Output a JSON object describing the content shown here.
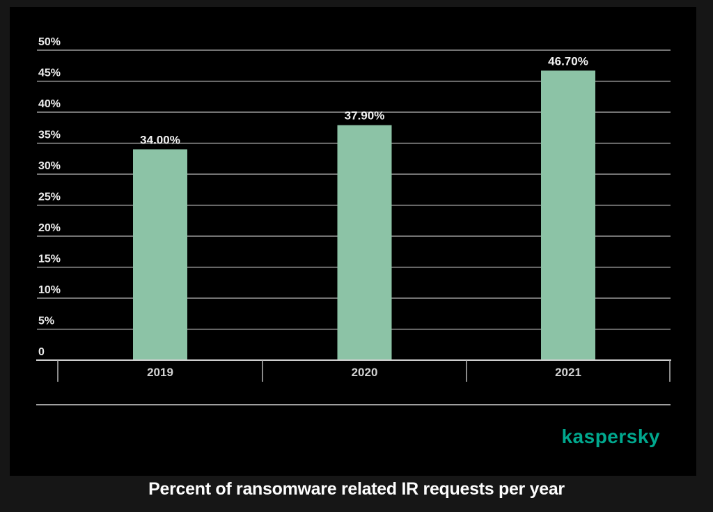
{
  "page": {
    "background_color": "#161616",
    "panel_color": "#000000"
  },
  "branding": {
    "logo_text": "kaspersky",
    "logo_color": "#00a88e"
  },
  "caption": "Percent of ransomware related IR requests per year",
  "chart_data": {
    "type": "bar",
    "title": "Percent of ransomware related IR requests per year",
    "categories": [
      "2019",
      "2020",
      "2021"
    ],
    "values": [
      34.0,
      37.9,
      46.7
    ],
    "value_labels": [
      "34.00%",
      "37.90%",
      "46.70%"
    ],
    "xlabel": "",
    "ylabel": "",
    "ylim": [
      0,
      50
    ],
    "ytick_step": 5,
    "ytick_labels": [
      "0",
      "5%",
      "10%",
      "15%",
      "20%",
      "25%",
      "30%",
      "35%",
      "40%",
      "45%",
      "50%"
    ],
    "grid": true,
    "legend": false,
    "bar_color": "#8cc3a6",
    "gridline_color": "#b8b8b8",
    "axis_color": "#d0d0d0",
    "separator_color": "#d4d4d4",
    "value_label_color": "#f0f0f0",
    "ytick_label_color": "#ededed",
    "category_label_color": "#d2d2d2"
  }
}
